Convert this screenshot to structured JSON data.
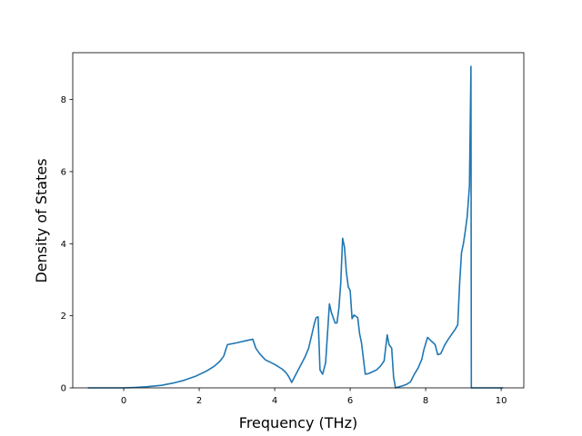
{
  "chart_data": {
    "type": "line",
    "title": "",
    "xlabel": "Frequency (THz)",
    "ylabel": "Density of States",
    "xlim": [
      -1.35,
      10.6
    ],
    "ylim": [
      0,
      9.3
    ],
    "xticks": [
      0,
      2,
      4,
      6,
      8,
      10
    ],
    "yticks": [
      0,
      2,
      4,
      6,
      8
    ],
    "grid": false,
    "line_color": "#1f77b4",
    "series": [
      {
        "x": [
          -0.95,
          -0.5,
          0.0,
          0.3,
          0.6,
          1.0,
          1.3,
          1.6,
          1.9,
          2.2,
          2.4,
          2.55,
          2.65,
          2.7,
          2.75,
          3.0,
          3.2,
          3.42,
          3.5,
          3.6,
          3.75,
          4.0,
          4.2,
          4.3,
          4.38,
          4.45,
          4.6,
          4.8,
          4.9,
          5.0,
          5.05,
          5.1,
          5.15,
          5.2,
          5.27,
          5.35,
          5.45,
          5.5,
          5.6,
          5.65,
          5.7,
          5.75,
          5.8,
          5.85,
          5.9,
          5.95,
          6.0,
          6.05,
          6.1,
          6.2,
          6.25,
          6.3,
          6.4,
          6.5,
          6.6,
          6.7,
          6.8,
          6.9,
          6.98,
          7.03,
          7.1,
          7.15,
          7.2,
          7.3,
          7.4,
          7.5,
          7.6,
          7.7,
          7.8,
          7.9,
          7.95,
          8.05,
          8.15,
          8.25,
          8.32,
          8.4,
          8.5,
          8.6,
          8.7,
          8.78,
          8.85,
          8.9,
          8.95,
          9.0,
          9.05,
          9.1,
          9.16,
          9.2,
          9.21,
          10.05
        ],
        "y": [
          0.0,
          0.0,
          0.0,
          0.01,
          0.03,
          0.07,
          0.13,
          0.21,
          0.32,
          0.47,
          0.6,
          0.74,
          0.88,
          1.05,
          1.2,
          1.25,
          1.3,
          1.35,
          1.1,
          0.95,
          0.78,
          0.65,
          0.52,
          0.42,
          0.3,
          0.15,
          0.45,
          0.85,
          1.1,
          1.55,
          1.78,
          1.95,
          1.97,
          0.5,
          0.38,
          0.7,
          2.33,
          2.1,
          1.8,
          1.8,
          2.2,
          2.9,
          4.15,
          3.9,
          3.2,
          2.8,
          2.7,
          1.92,
          2.02,
          1.95,
          1.5,
          1.25,
          0.38,
          0.4,
          0.45,
          0.5,
          0.6,
          0.75,
          1.47,
          1.2,
          1.1,
          0.3,
          0.0,
          0.03,
          0.06,
          0.1,
          0.17,
          0.38,
          0.55,
          0.8,
          1.05,
          1.4,
          1.3,
          1.2,
          0.92,
          0.95,
          1.18,
          1.35,
          1.5,
          1.62,
          1.75,
          2.9,
          3.75,
          4.0,
          4.35,
          4.75,
          5.6,
          8.92,
          0.0,
          0.0
        ]
      }
    ]
  }
}
